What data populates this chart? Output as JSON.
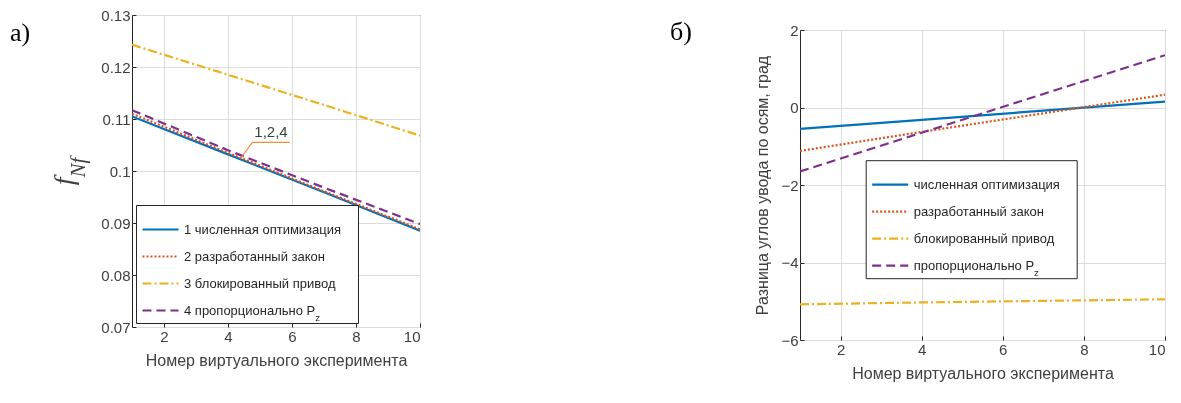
{
  "chart_data": [
    {
      "type": "line",
      "title": "а)",
      "xlabel": "Номер виртуального эксперимента",
      "ylabel": "f$_{Nf}$",
      "x": [
        1,
        4,
        7,
        10
      ],
      "xlim": [
        1,
        10
      ],
      "xticks": [
        2,
        4,
        6,
        8,
        10
      ],
      "ylim": [
        0.07,
        0.13
      ],
      "yticks": [
        0.07,
        0.08,
        0.09,
        0.1,
        0.11,
        0.12,
        0.13
      ],
      "grid": true,
      "legend": "bottom left",
      "annotations": [
        {
          "text": "1,2,4",
          "x": 4.4,
          "y": 0.1025
        }
      ],
      "series": [
        {
          "name": "1 численная оптимизация",
          "color": "#0072bd",
          "line_style": "solid",
          "values": [
            0.1105,
            0.1032,
            0.0959,
            0.0885
          ]
        },
        {
          "name": "2 разработанный закон",
          "color": "#d95319",
          "line_style": "dotted",
          "values": [
            0.111,
            0.1035,
            0.0961,
            0.0888
          ]
        },
        {
          "name": "3 блокированный привод",
          "color": "#edb120",
          "line_style": "dashdot",
          "values": [
            0.1243,
            0.1185,
            0.1127,
            0.1068
          ]
        },
        {
          "name": "4 пропорционально P$_{z}$",
          "color": "#7e2f8e",
          "line_style": "dashed",
          "values": [
            0.1117,
            0.104,
            0.0968,
            0.0898
          ]
        }
      ]
    },
    {
      "type": "line",
      "title": "б)",
      "xlabel": "Номер виртуального эксперимента",
      "ylabel": "Разница углов увода по осям, град",
      "x": [
        1,
        4,
        7,
        10
      ],
      "xlim": [
        1,
        10
      ],
      "xticks": [
        2,
        4,
        6,
        8,
        10
      ],
      "ylim": [
        -6,
        2
      ],
      "yticks": [
        -6,
        -4,
        -2,
        0,
        2
      ],
      "grid": true,
      "legend": "right",
      "series": [
        {
          "name": "численная оптимизация",
          "color": "#0072bd",
          "line_style": "solid",
          "values": [
            -0.55,
            -0.32,
            -0.08,
            0.15
          ]
        },
        {
          "name": "разработанный закон",
          "color": "#d95319",
          "line_style": "dotted",
          "values": [
            -1.12,
            -0.63,
            -0.15,
            0.33
          ]
        },
        {
          "name": "блокированный привод",
          "color": "#edb120",
          "line_style": "dashdot",
          "values": [
            -5.08,
            -5.03,
            -4.99,
            -4.95
          ]
        },
        {
          "name": "пропорционально P$_{z}$",
          "color": "#7e2f8e",
          "line_style": "dashed",
          "values": [
            -1.65,
            -0.65,
            0.35,
            1.35
          ]
        }
      ]
    }
  ]
}
